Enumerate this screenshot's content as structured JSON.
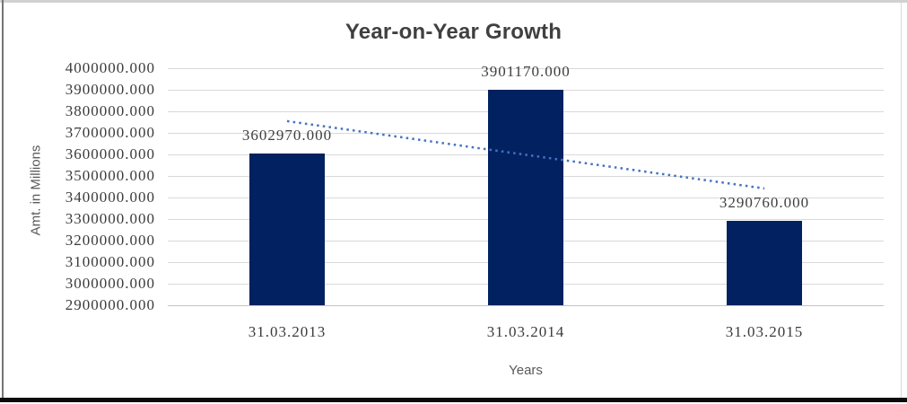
{
  "chart_data": {
    "type": "bar",
    "title": "Year-on-Year Growth",
    "xlabel": "Years",
    "ylabel": "Amt. in Millions",
    "categories": [
      "31.03.2013",
      "31.03.2014",
      "31.03.2015"
    ],
    "values": [
      3602970,
      3901170,
      3290760
    ],
    "data_labels": [
      "3602970.000",
      "3901170.000",
      "3290760.000"
    ],
    "ylim": [
      2900000,
      4000000
    ],
    "ytick_step": 100000,
    "ytick_labels": [
      "4000000.000",
      "3900000.000",
      "3800000.000",
      "3700000.000",
      "3600000.000",
      "3500000.000",
      "3400000.000",
      "3300000.000",
      "3200000.000",
      "3100000.000",
      "3000000.000",
      "2900000.000"
    ],
    "grid": true,
    "legend": "none",
    "trendline": {
      "type": "linear",
      "style": "dotted",
      "points": [
        3754405,
        3598300,
        3442195
      ],
      "color": "#4472C4"
    },
    "colors": {
      "bar": "#022160",
      "gridline": "#d9d9d9",
      "axis_line": "#c4c4c4",
      "title_text": "#404040",
      "tick_text": "#3b3b3b",
      "data_label_text": "#3f3f3f",
      "axis_label_text": "#595959"
    }
  }
}
